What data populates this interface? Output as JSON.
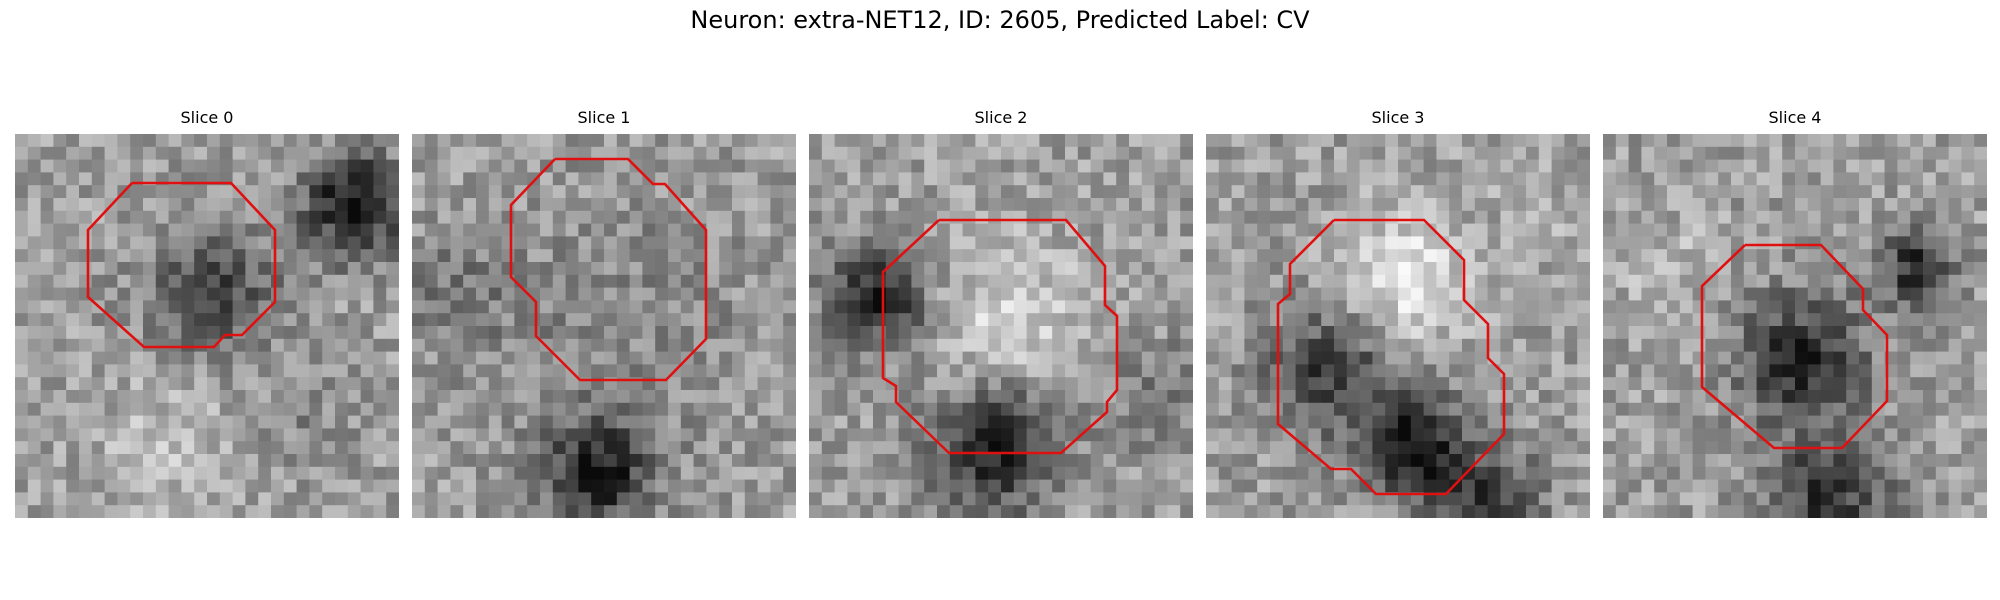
{
  "figure": {
    "title": "Neuron: extra-NET12, ID: 2605, Predicted Label: CV"
  },
  "panels": [
    {
      "title": "Slice 0"
    },
    {
      "title": "Slice 1"
    },
    {
      "title": "Slice 2"
    },
    {
      "title": "Slice 3"
    },
    {
      "title": "Slice 4"
    }
  ],
  "style": {
    "contour_color": "#e01010"
  }
}
